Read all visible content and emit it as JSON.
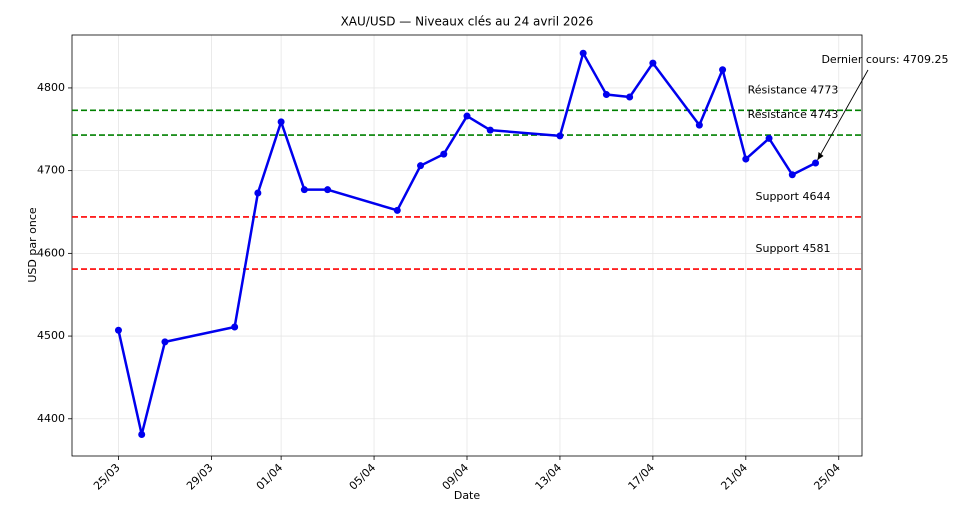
{
  "chart_data": {
    "type": "line",
    "title": "XAU/USD — Niveaux clés au 24 avril 2026",
    "x_label": "Date",
    "y_label": "USD par once",
    "x": [
      "25/03",
      "26/03",
      "27/03",
      "30/03",
      "31/03",
      "01/04",
      "02/04",
      "03/04",
      "06/04",
      "07/04",
      "08/04",
      "09/04",
      "10/04",
      "13/04",
      "14/04",
      "15/04",
      "16/04",
      "17/04",
      "19/04",
      "20/04",
      "21/04",
      "22/04",
      "23/04",
      "24/04"
    ],
    "series": [
      {
        "name": "XAU/USD",
        "color": "#0000ee",
        "values": [
          4507,
          4381,
          4493,
          4511,
          4673,
          4759,
          4677,
          4677,
          4652,
          4706,
          4720,
          4766,
          4749,
          4742,
          4842,
          4792,
          4789,
          4830,
          4755,
          4822,
          4714,
          4739,
          4695,
          4709.25
        ]
      }
    ],
    "hlines": [
      {
        "label": "Résistance 4773",
        "value": 4773,
        "color": "#008000"
      },
      {
        "label": "Résistance 4743",
        "value": 4743,
        "color": "#008000"
      },
      {
        "label": "Support 4644",
        "value": 4644,
        "color": "#ff0000"
      },
      {
        "label": "Support 4581",
        "value": 4581,
        "color": "#ff0000"
      }
    ],
    "annotation": {
      "text": "Dernier cours: 4709.25"
    },
    "xlim": [
      "23/03",
      "26/04"
    ],
    "xticks": [
      "25/03",
      "29/03",
      "01/04",
      "05/04",
      "09/04",
      "13/04",
      "17/04",
      "21/04",
      "25/04"
    ],
    "ylim": [
      4355,
      4864
    ],
    "yticks": [
      4400,
      4500,
      4600,
      4700,
      4800
    ],
    "grid": true
  }
}
